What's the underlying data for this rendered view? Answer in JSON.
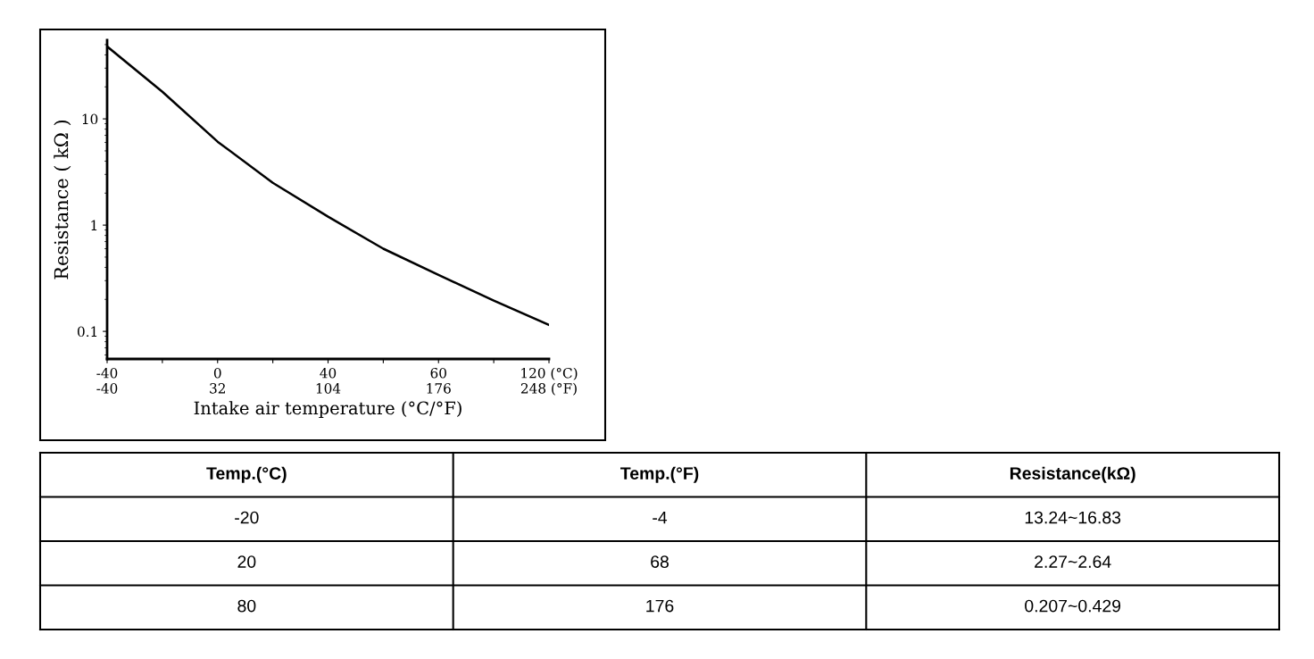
{
  "chart_data": [
    {
      "type": "line",
      "xlabel": "Intake air temperature (°C/°F)",
      "ylabel": "Resistance ( kΩ )",
      "log": "y",
      "grid": false,
      "legend": false,
      "marker": "none",
      "line_style": "solid",
      "categories": [
        "-40\n-40",
        null,
        "0\n32",
        null,
        "40\n104",
        null,
        "60\n176",
        null,
        "120 (°C)\n248 (°F)"
      ],
      "series": [
        {
          "color": "#000000",
          "values": [
            48,
            18,
            6.1,
            2.5,
            1.2,
            0.6,
            0.34,
            0.195,
            0.115
          ]
        }
      ],
      "ylim": [
        0.055,
        55
      ],
      "yticks": [
        0.1,
        1,
        10
      ]
    },
    {
      "type": "other",
      "categories": [
        "Temp.(°C)",
        "Temp.(°F)",
        "Resistance(kΩ)"
      ],
      "annotations": [
        "-20",
        "-4",
        "13.24~16.83",
        "20",
        "68",
        "2.27~2.64",
        "80",
        "176",
        "0.207~0.429"
      ]
    }
  ]
}
